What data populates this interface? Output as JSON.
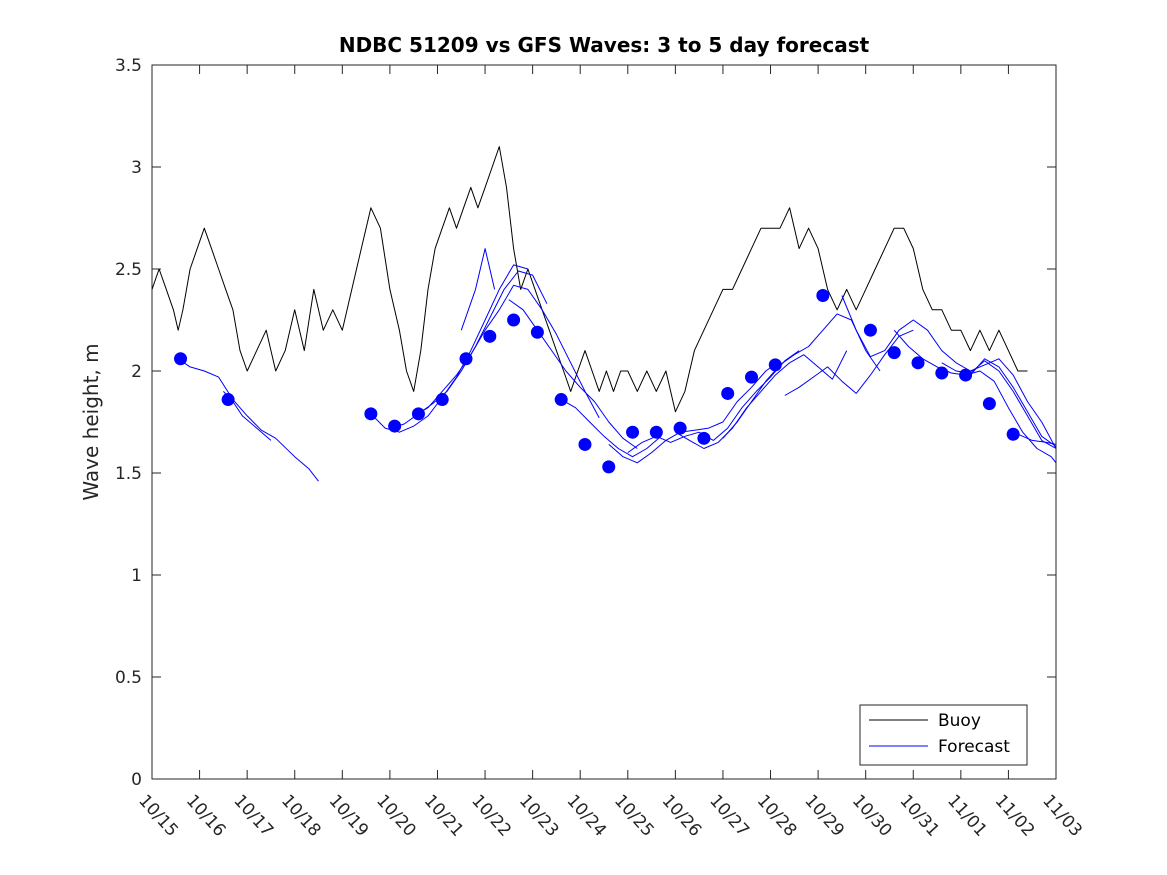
{
  "chart_data": {
    "type": "line",
    "title": "NDBC 51209 vs GFS Waves: 3 to 5 day forecast",
    "xlabel": "",
    "ylabel": "Wave height, m",
    "xlim": [
      0,
      19
    ],
    "ylim": [
      0,
      3.5
    ],
    "x_tick_labels": [
      "10/15",
      "10/16",
      "10/17",
      "10/18",
      "10/19",
      "10/20",
      "10/21",
      "10/22",
      "10/23",
      "10/24",
      "10/25",
      "10/26",
      "10/27",
      "10/28",
      "10/29",
      "10/30",
      "10/31",
      "11/01",
      "11/02",
      "11/03"
    ],
    "y_tick_values": [
      0,
      0.5,
      1,
      1.5,
      2,
      2.5,
      3,
      3.5
    ],
    "y_tick_labels": [
      "0",
      "0.5",
      "1",
      "1.5",
      "2",
      "2.5",
      "3",
      "3.5"
    ],
    "legend": {
      "location": "bottom-right",
      "entries": [
        {
          "label": "Buoy",
          "color": "#000000"
        },
        {
          "label": "Forecast",
          "color": "#0000ff"
        }
      ]
    },
    "series": [
      {
        "name": "Buoy",
        "color": "#000000",
        "x": [
          0.0,
          0.15,
          0.3,
          0.45,
          0.55,
          0.65,
          0.8,
          0.95,
          1.1,
          1.25,
          1.4,
          1.55,
          1.7,
          1.85,
          2.0,
          2.2,
          2.4,
          2.6,
          2.8,
          3.0,
          3.2,
          3.4,
          3.6,
          3.8,
          4.0,
          4.2,
          4.4,
          4.6,
          4.8,
          5.0,
          5.2,
          5.35,
          5.5,
          5.65,
          5.8,
          5.95,
          6.1,
          6.25,
          6.4,
          6.55,
          6.7,
          6.85,
          7.0,
          7.15,
          7.3,
          7.45,
          7.6,
          7.75,
          7.9,
          8.05,
          8.2,
          8.35,
          8.5,
          8.65,
          8.8,
          8.95,
          9.1,
          9.25,
          9.4,
          9.55,
          9.7,
          9.85,
          10.0,
          10.2,
          10.4,
          10.6,
          10.8,
          11.0,
          11.2,
          11.4,
          11.6,
          11.8,
          12.0,
          12.2,
          12.4,
          12.6,
          12.8,
          13.0,
          13.2,
          13.4,
          13.6,
          13.8,
          14.0,
          14.2,
          14.4,
          14.6,
          14.8,
          15.0,
          15.2,
          15.4,
          15.6,
          15.8,
          16.0,
          16.2,
          16.4,
          16.6,
          16.8,
          17.0,
          17.2,
          17.4,
          17.6,
          17.8,
          18.0,
          18.2,
          18.4
        ],
        "y": [
          2.4,
          2.5,
          2.4,
          2.3,
          2.2,
          2.3,
          2.5,
          2.6,
          2.7,
          2.6,
          2.5,
          2.4,
          2.3,
          2.1,
          2.0,
          2.1,
          2.2,
          2.0,
          2.1,
          2.3,
          2.1,
          2.4,
          2.2,
          2.3,
          2.2,
          2.4,
          2.6,
          2.8,
          2.7,
          2.4,
          2.2,
          2.0,
          1.9,
          2.1,
          2.4,
          2.6,
          2.7,
          2.8,
          2.7,
          2.8,
          2.9,
          2.8,
          2.9,
          3.0,
          3.1,
          2.9,
          2.6,
          2.4,
          2.5,
          2.4,
          2.3,
          2.2,
          2.1,
          2.0,
          1.9,
          2.0,
          2.1,
          2.0,
          1.9,
          2.0,
          1.9,
          2.0,
          2.0,
          1.9,
          2.0,
          1.9,
          2.0,
          1.8,
          1.9,
          2.1,
          2.2,
          2.3,
          2.4,
          2.4,
          2.5,
          2.6,
          2.7,
          2.7,
          2.7,
          2.8,
          2.6,
          2.7,
          2.6,
          2.4,
          2.3,
          2.4,
          2.3,
          2.4,
          2.5,
          2.6,
          2.7,
          2.7,
          2.6,
          2.4,
          2.3,
          2.3,
          2.2,
          2.2,
          2.1,
          2.2,
          2.1,
          2.2,
          2.1,
          2.0,
          2.0
        ]
      },
      {
        "name": "Forecast",
        "color": "#0000ff",
        "segments": [
          {
            "x": [
              0.55,
              0.8,
              1.1,
              1.4,
              1.7,
              2.0,
              2.3,
              2.6,
              3.0,
              3.3,
              3.5
            ],
            "y": [
              2.06,
              2.02,
              2.0,
              1.97,
              1.86,
              1.78,
              1.71,
              1.67,
              1.58,
              1.52,
              1.46
            ]
          },
          {
            "x": [
              1.5,
              1.7,
              1.9,
              2.2,
              2.5
            ],
            "y": [
              1.9,
              1.85,
              1.78,
              1.72,
              1.66
            ]
          },
          {
            "x": [
              4.6,
              4.9,
              5.2,
              5.5,
              5.8,
              6.1,
              6.4,
              6.7,
              7.0,
              7.3,
              7.6,
              7.9
            ],
            "y": [
              1.79,
              1.72,
              1.7,
              1.73,
              1.78,
              1.87,
              1.97,
              2.1,
              2.25,
              2.4,
              2.52,
              2.5
            ]
          },
          {
            "x": [
              5.0,
              5.3,
              5.6,
              5.9,
              6.2,
              6.5,
              6.8,
              7.1,
              7.4,
              7.7,
              8.0,
              8.3
            ],
            "y": [
              1.72,
              1.74,
              1.79,
              1.84,
              1.9,
              2.0,
              2.12,
              2.26,
              2.4,
              2.49,
              2.47,
              2.33
            ]
          },
          {
            "x": [
              5.5,
              5.8,
              6.1,
              6.4,
              6.7,
              7.0,
              7.3,
              7.6,
              7.9,
              8.2,
              8.5,
              8.8,
              9.1,
              9.4
            ],
            "y": [
              1.78,
              1.82,
              1.9,
              1.98,
              2.08,
              2.2,
              2.3,
              2.42,
              2.4,
              2.3,
              2.18,
              2.04,
              1.9,
              1.77
            ]
          },
          {
            "x": [
              6.5,
              6.8,
              7.0,
              7.2
            ],
            "y": [
              2.2,
              2.4,
              2.6,
              2.4
            ]
          },
          {
            "x": [
              7.5,
              7.8,
              8.1,
              8.4,
              8.7,
              9.0,
              9.3,
              9.6,
              9.9,
              10.2
            ],
            "y": [
              2.35,
              2.3,
              2.2,
              2.1,
              2.0,
              1.92,
              1.85,
              1.75,
              1.67,
              1.62
            ]
          },
          {
            "x": [
              8.6,
              8.9,
              9.2,
              9.5,
              9.8,
              10.1,
              10.4,
              10.7
            ],
            "y": [
              1.86,
              1.82,
              1.75,
              1.68,
              1.62,
              1.58,
              1.62,
              1.68
            ]
          },
          {
            "x": [
              9.6,
              9.9,
              10.2,
              10.5,
              10.8,
              11.1,
              11.4,
              11.7,
              12.0,
              12.3,
              12.6,
              12.9,
              13.2
            ],
            "y": [
              1.64,
              1.58,
              1.55,
              1.6,
              1.66,
              1.7,
              1.71,
              1.72,
              1.75,
              1.85,
              1.92,
              2.0,
              2.05
            ]
          },
          {
            "x": [
              10.0,
              10.3,
              10.6,
              10.9,
              11.2,
              11.5,
              11.8,
              12.1,
              12.4,
              12.7,
              13.0,
              13.3,
              13.6
            ],
            "y": [
              1.6,
              1.65,
              1.68,
              1.65,
              1.68,
              1.7,
              1.66,
              1.72,
              1.82,
              1.9,
              1.97,
              2.05,
              2.1
            ]
          },
          {
            "x": [
              11.0,
              11.3,
              11.6,
              11.9,
              12.2,
              12.5,
              12.8,
              13.1,
              13.4,
              13.7,
              14.0,
              14.3,
              14.6
            ],
            "y": [
              1.7,
              1.66,
              1.62,
              1.65,
              1.72,
              1.82,
              1.9,
              1.98,
              2.04,
              2.08,
              2.02,
              1.96,
              2.1
            ]
          },
          {
            "x": [
              12.0,
              12.3,
              12.6,
              12.9,
              13.2,
              13.5,
              13.8,
              14.1,
              14.4,
              14.7,
              15.0,
              15.3
            ],
            "y": [
              1.67,
              1.75,
              1.85,
              1.95,
              2.03,
              2.08,
              2.12,
              2.2,
              2.28,
              2.25,
              2.1,
              2.0
            ]
          },
          {
            "x": [
              13.3,
              13.6,
              13.9,
              14.2,
              14.5,
              14.8,
              15.1,
              15.4,
              15.7,
              16.0
            ],
            "y": [
              1.88,
              1.92,
              1.97,
              2.02,
              1.95,
              1.89,
              1.98,
              2.08,
              2.17,
              2.2
            ]
          },
          {
            "x": [
              14.5,
              14.8,
              15.1,
              15.4,
              15.7,
              16.0,
              16.3,
              16.6,
              16.9,
              17.2,
              17.5,
              17.8,
              18.1,
              18.4,
              18.7,
              19.0
            ],
            "y": [
              2.37,
              2.2,
              2.07,
              2.1,
              2.2,
              2.25,
              2.2,
              2.1,
              2.04,
              2.0,
              2.03,
              2.06,
              1.98,
              1.85,
              1.75,
              1.62
            ]
          },
          {
            "x": [
              15.6,
              15.9,
              16.2,
              16.5,
              16.8,
              17.1,
              17.4,
              17.7,
              18.0,
              18.3,
              18.6,
              18.9,
              19.0
            ],
            "y": [
              2.2,
              2.12,
              2.06,
              2.02,
              1.99,
              1.98,
              2.0,
              1.95,
              1.82,
              1.7,
              1.62,
              1.58,
              1.55
            ]
          },
          {
            "x": [
              16.6,
              16.9,
              17.2,
              17.5,
              17.8,
              18.1,
              18.4,
              18.7,
              19.0
            ],
            "y": [
              2.04,
              2.0,
              1.99,
              2.05,
              2.0,
              1.9,
              1.78,
              1.66,
              1.62
            ]
          },
          {
            "x": [
              17.2,
              17.5,
              17.8,
              18.1,
              18.4,
              18.7,
              19.0
            ],
            "y": [
              1.98,
              2.06,
              2.02,
              1.92,
              1.8,
              1.68,
              1.63
            ]
          },
          {
            "x": [
              18.2,
              18.5,
              18.8,
              19.0
            ],
            "y": [
              1.69,
              1.66,
              1.65,
              1.64
            ]
          }
        ]
      },
      {
        "name": "Forecast markers",
        "color": "#0000ff",
        "x": [
          0.6,
          1.6,
          4.6,
          5.1,
          5.6,
          6.1,
          6.6,
          7.1,
          7.6,
          8.1,
          8.6,
          9.1,
          9.6,
          10.1,
          10.6,
          11.1,
          11.6,
          12.1,
          12.6,
          13.1,
          14.1,
          15.1,
          15.6,
          16.1,
          16.6,
          17.1,
          17.6,
          18.1
        ],
        "y": [
          2.06,
          1.86,
          1.79,
          1.73,
          1.79,
          1.86,
          2.06,
          2.17,
          2.25,
          2.19,
          1.86,
          1.64,
          1.53,
          1.7,
          1.7,
          1.72,
          1.67,
          1.89,
          1.97,
          2.03,
          2.37,
          2.2,
          2.09,
          2.04,
          1.99,
          1.98,
          1.84,
          1.69
        ]
      }
    ]
  }
}
